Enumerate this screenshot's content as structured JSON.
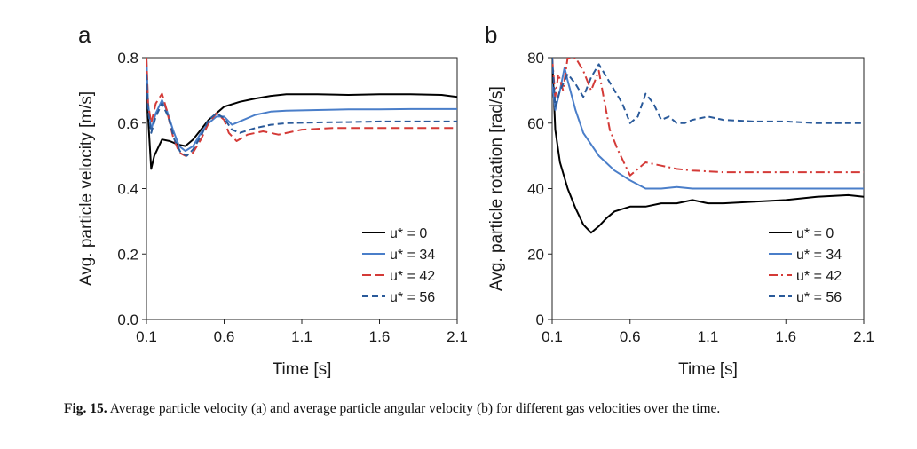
{
  "caption": {
    "label": "Fig. 15.",
    "text": "Average particle velocity (a) and average particle angular velocity (b) for different gas velocities over the time."
  },
  "chart_data": [
    {
      "panel": "a",
      "type": "line",
      "xlabel": "Time [s]",
      "ylabel": "Avg. particle velocity [m/s]",
      "xlim": [
        0.1,
        2.1
      ],
      "ylim": [
        0.0,
        0.8
      ],
      "xticks": [
        "0.1",
        "0.6",
        "1.1",
        "1.6",
        "2.1"
      ],
      "yticks": [
        "0.0",
        "0.2",
        "0.4",
        "0.6",
        "0.8"
      ],
      "grid": false,
      "legend_position": "bottom-right",
      "series": [
        {
          "name": "u* = 0",
          "color": "#000000",
          "dash": "solid",
          "x": [
            0.1,
            0.11,
            0.13,
            0.15,
            0.2,
            0.25,
            0.3,
            0.35,
            0.4,
            0.45,
            0.5,
            0.55,
            0.6,
            0.7,
            0.8,
            0.9,
            1.0,
            1.2,
            1.4,
            1.6,
            1.8,
            2.0,
            2.1
          ],
          "y": [
            0.78,
            0.62,
            0.46,
            0.5,
            0.55,
            0.545,
            0.535,
            0.53,
            0.55,
            0.58,
            0.61,
            0.63,
            0.65,
            0.665,
            0.675,
            0.683,
            0.688,
            0.688,
            0.686,
            0.688,
            0.688,
            0.686,
            0.68
          ]
        },
        {
          "name": "u* = 34",
          "color": "#4a7ec9",
          "dash": "solid",
          "x": [
            0.1,
            0.11,
            0.13,
            0.16,
            0.2,
            0.23,
            0.27,
            0.31,
            0.35,
            0.4,
            0.45,
            0.5,
            0.55,
            0.6,
            0.65,
            0.7,
            0.8,
            0.9,
            1.0,
            1.2,
            1.4,
            1.6,
            1.8,
            2.0,
            2.1
          ],
          "y": [
            0.8,
            0.66,
            0.58,
            0.63,
            0.67,
            0.64,
            0.58,
            0.53,
            0.515,
            0.53,
            0.57,
            0.6,
            0.62,
            0.62,
            0.595,
            0.605,
            0.625,
            0.635,
            0.638,
            0.64,
            0.642,
            0.642,
            0.643,
            0.643,
            0.643
          ]
        },
        {
          "name": "u* = 42",
          "color": "#d43a37",
          "dash": "longdash",
          "x": [
            0.1,
            0.11,
            0.13,
            0.16,
            0.2,
            0.23,
            0.27,
            0.31,
            0.35,
            0.4,
            0.45,
            0.5,
            0.55,
            0.6,
            0.63,
            0.68,
            0.75,
            0.85,
            0.95,
            1.1,
            1.3,
            1.5,
            1.7,
            1.9,
            2.1
          ],
          "y": [
            0.8,
            0.66,
            0.6,
            0.66,
            0.69,
            0.64,
            0.56,
            0.51,
            0.5,
            0.51,
            0.55,
            0.6,
            0.63,
            0.61,
            0.57,
            0.545,
            0.565,
            0.575,
            0.565,
            0.58,
            0.585,
            0.585,
            0.585,
            0.585,
            0.585
          ]
        },
        {
          "name": "u* = 56",
          "color": "#2a5a9a",
          "dash": "dash",
          "x": [
            0.1,
            0.11,
            0.13,
            0.16,
            0.2,
            0.24,
            0.28,
            0.32,
            0.36,
            0.4,
            0.45,
            0.5,
            0.55,
            0.6,
            0.65,
            0.7,
            0.8,
            0.9,
            1.0,
            1.2,
            1.4,
            1.6,
            1.8,
            2.0,
            2.1
          ],
          "y": [
            0.75,
            0.64,
            0.57,
            0.62,
            0.66,
            0.62,
            0.55,
            0.51,
            0.5,
            0.52,
            0.56,
            0.61,
            0.63,
            0.615,
            0.58,
            0.57,
            0.585,
            0.595,
            0.6,
            0.602,
            0.603,
            0.605,
            0.605,
            0.605,
            0.605
          ]
        }
      ]
    },
    {
      "panel": "b",
      "type": "line",
      "xlabel": "Time [s]",
      "ylabel": "Avg. particle rotation [rad/s]",
      "xlim": [
        0.1,
        2.1
      ],
      "ylim": [
        0,
        80
      ],
      "xticks": [
        "0.1",
        "0.6",
        "1.1",
        "1.6",
        "2.1"
      ],
      "yticks": [
        "0",
        "20",
        "40",
        "60",
        "80"
      ],
      "grid": false,
      "legend_position": "bottom-right",
      "series": [
        {
          "name": "u* = 0",
          "color": "#000000",
          "dash": "solid",
          "x": [
            0.1,
            0.12,
            0.15,
            0.2,
            0.25,
            0.3,
            0.35,
            0.4,
            0.45,
            0.5,
            0.6,
            0.7,
            0.8,
            0.9,
            1.0,
            1.1,
            1.2,
            1.4,
            1.6,
            1.8,
            2.0,
            2.1
          ],
          "y": [
            80,
            58,
            48,
            40,
            34,
            29,
            26.5,
            28.5,
            31,
            33,
            34.5,
            34.5,
            35.5,
            35.5,
            36.5,
            35.5,
            35.5,
            36,
            36.5,
            37.5,
            38,
            37.5
          ]
        },
        {
          "name": "u* = 34",
          "color": "#4a7ec9",
          "dash": "solid",
          "x": [
            0.1,
            0.12,
            0.15,
            0.18,
            0.2,
            0.25,
            0.3,
            0.4,
            0.5,
            0.6,
            0.7,
            0.8,
            0.9,
            1.0,
            1.2,
            1.4,
            1.6,
            1.8,
            2.0,
            2.1
          ],
          "y": [
            72,
            64,
            70,
            77,
            73,
            64,
            57,
            50,
            45.5,
            42.5,
            40,
            40,
            40.5,
            40,
            40,
            40,
            40,
            40,
            40,
            40
          ]
        },
        {
          "name": "u* = 42",
          "color": "#d43a37",
          "dash": "dashdot",
          "x": [
            0.1,
            0.12,
            0.14,
            0.17,
            0.2,
            0.25,
            0.3,
            0.35,
            0.4,
            0.43,
            0.47,
            0.52,
            0.6,
            0.65,
            0.7,
            0.8,
            0.9,
            1.0,
            1.2,
            1.4,
            1.6,
            1.8,
            2.0,
            2.1
          ],
          "y": [
            80,
            68,
            75,
            70,
            80,
            80,
            76,
            70,
            76,
            68,
            58,
            52,
            44,
            46,
            48,
            47,
            46,
            45.5,
            45,
            45,
            45,
            45,
            45,
            45
          ]
        },
        {
          "name": "u* = 56",
          "color": "#2a5a9a",
          "dash": "dash",
          "x": [
            0.1,
            0.12,
            0.15,
            0.2,
            0.25,
            0.3,
            0.35,
            0.4,
            0.45,
            0.5,
            0.55,
            0.6,
            0.65,
            0.7,
            0.75,
            0.8,
            0.85,
            0.9,
            0.95,
            1.0,
            1.1,
            1.2,
            1.4,
            1.6,
            1.8,
            2.0,
            2.1
          ],
          "y": [
            80,
            65,
            70,
            75,
            72,
            68,
            74,
            78,
            74,
            70,
            66,
            60,
            62,
            69,
            66,
            61,
            62,
            60,
            60,
            61,
            62,
            61,
            60.5,
            60.5,
            60,
            60,
            60
          ]
        }
      ]
    }
  ]
}
